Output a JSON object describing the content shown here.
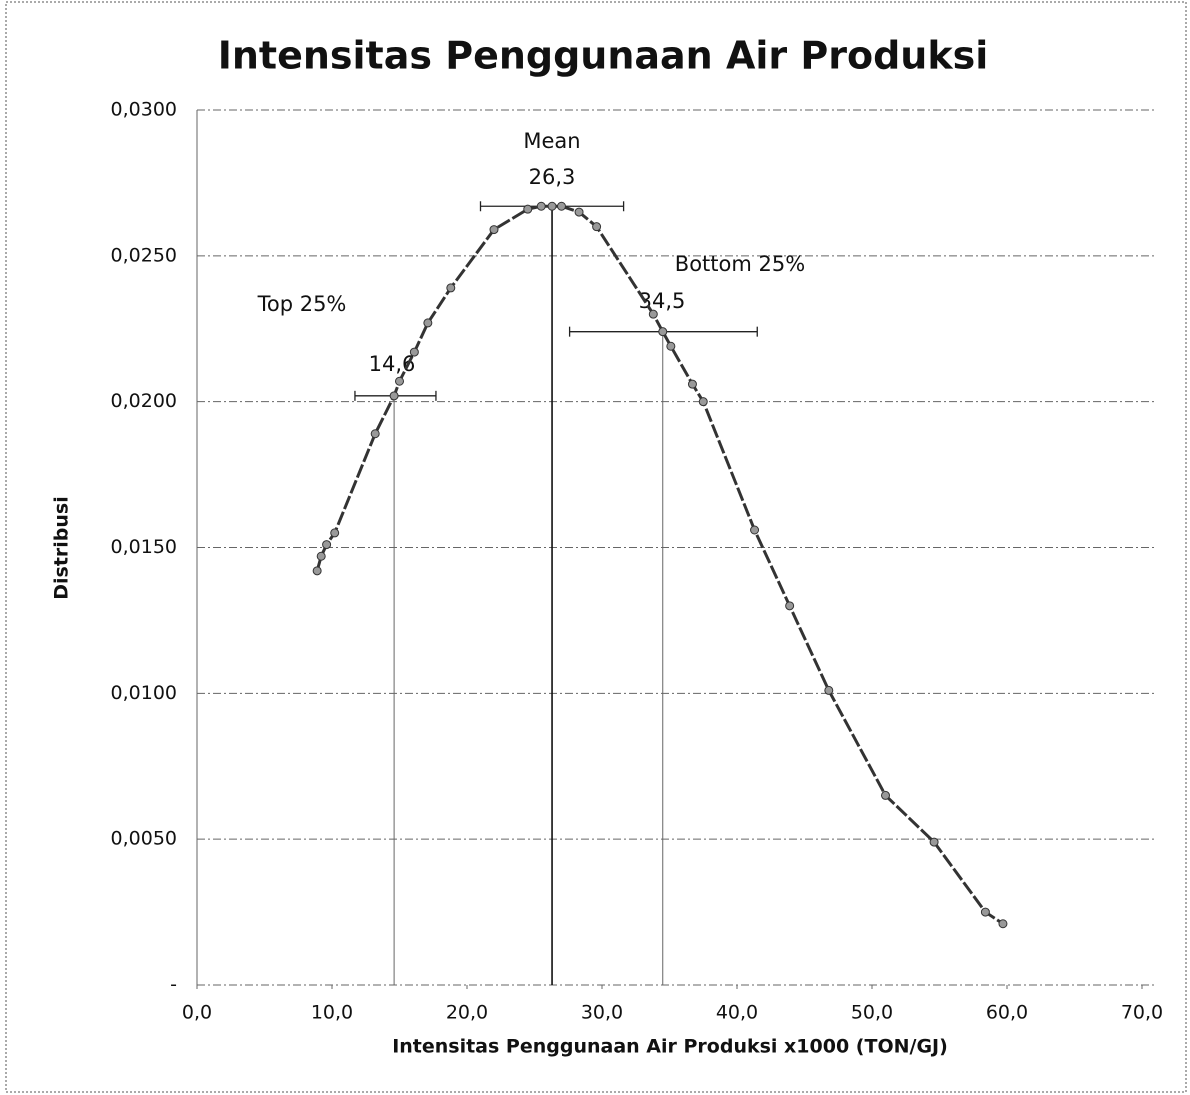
{
  "chart_data": {
    "type": "line",
    "title": "Intensitas Penggunaan Air Produksi",
    "xlabel": "Intensitas Penggunaan Air Produksi x1000 (TON/GJ)",
    "ylabel": "Distribusi",
    "x": [
      8.9,
      9.2,
      9.6,
      10.2,
      13.2,
      14.6,
      15.0,
      16.1,
      17.1,
      18.8,
      22.0,
      24.5,
      25.5,
      26.3,
      27.0,
      28.3,
      29.6,
      33.8,
      34.5,
      35.1,
      36.7,
      37.5,
      41.3,
      43.9,
      46.8,
      51.0,
      54.6,
      58.4,
      59.7
    ],
    "series": [
      {
        "color": "#333333",
        "values": [
          0.0142,
          0.0147,
          0.0151,
          0.0155,
          0.0189,
          0.0202,
          0.0207,
          0.0217,
          0.0227,
          0.0239,
          0.0259,
          0.0266,
          0.0267,
          0.0267,
          0.0267,
          0.0265,
          0.026,
          0.023,
          0.0224,
          0.0219,
          0.0206,
          0.02,
          0.0156,
          0.013,
          0.0101,
          0.0065,
          0.0049,
          0.0025,
          0.0021
        ]
      }
    ],
    "vlines": [
      14.6,
      26.3,
      34.5
    ],
    "errorbars": [
      {
        "y": 0.0202,
        "xmin": 11.7,
        "xmax": 17.7
      },
      {
        "y": 0.0267,
        "xmin": 21.0,
        "xmax": 31.6
      },
      {
        "y": 0.0224,
        "xmin": 27.6,
        "xmax": 41.5
      }
    ],
    "annotations": [
      "Top 25%",
      "14,6",
      "Mean",
      "26,3",
      "Bottom 25%",
      "34,5"
    ],
    "xlim": [
      0,
      70
    ],
    "xticks": [
      {
        "value": 0,
        "label": "0,0"
      },
      {
        "value": 10,
        "label": "10,0"
      },
      {
        "value": 20,
        "label": "20,0"
      },
      {
        "value": 30,
        "label": "30,0"
      },
      {
        "value": 40,
        "label": "40,0"
      },
      {
        "value": 50,
        "label": "50,0"
      },
      {
        "value": 60,
        "label": "60,0"
      },
      {
        "value": 70,
        "label": "70,0"
      }
    ],
    "ylim": [
      0,
      0.03
    ],
    "yticks": [
      {
        "value": 0,
        "label": "-"
      },
      {
        "value": 0.005,
        "label": "0,0050"
      },
      {
        "value": 0.01,
        "label": "0,0100"
      },
      {
        "value": 0.015,
        "label": "0,0150"
      },
      {
        "value": 0.02,
        "label": "0,0200"
      },
      {
        "value": 0.025,
        "label": "0,0250"
      },
      {
        "value": 0.03,
        "label": "0,0300"
      }
    ],
    "grid": true
  }
}
